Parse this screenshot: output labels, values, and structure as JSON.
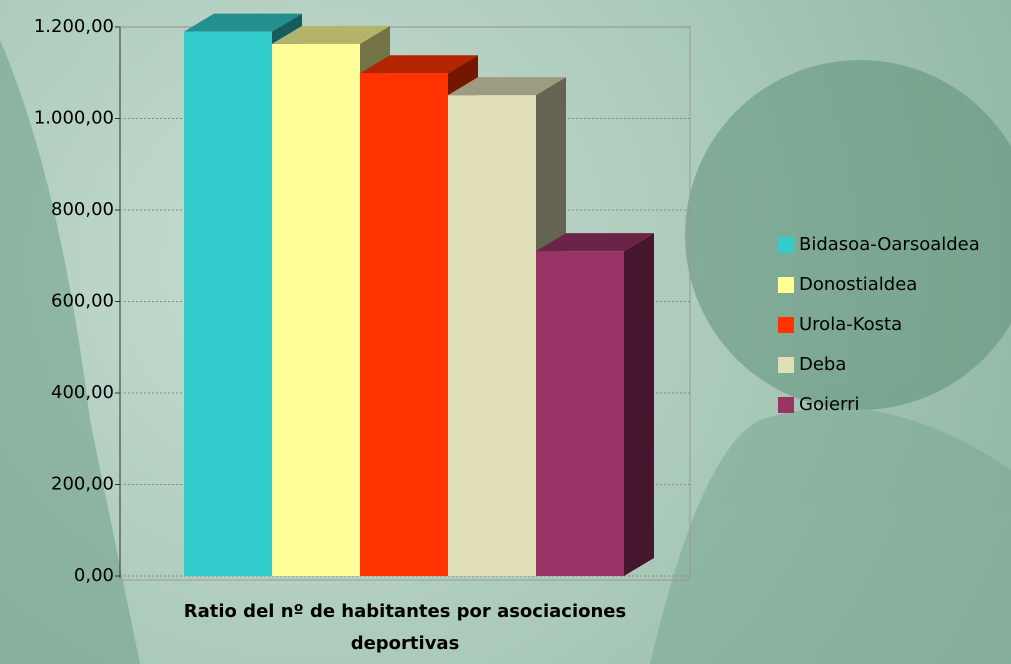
{
  "chart_data": {
    "type": "bar3d",
    "categories": [
      "Ratio del nº de habitantes por asociaciones deportivas"
    ],
    "series": [
      {
        "name": "Bidasoa-Oarsoaldea",
        "color": "#33cccc",
        "values": [
          1190
        ]
      },
      {
        "name": "Donostialdea",
        "color": "#ffff99",
        "values": [
          1163
        ]
      },
      {
        "name": "Urola-Kosta",
        "color": "#ff3300",
        "values": [
          1099
        ]
      },
      {
        "name": "Deba",
        "color": "#e0dfb8",
        "values": [
          1051
        ]
      },
      {
        "name": "Goierri",
        "color": "#993366",
        "values": [
          710
        ]
      }
    ],
    "ylim": [
      0,
      1200
    ],
    "yticks": [
      {
        "value": 0,
        "label": "0,00"
      },
      {
        "value": 200,
        "label": "200,00"
      },
      {
        "value": 400,
        "label": "400,00"
      },
      {
        "value": 600,
        "label": "600,00"
      },
      {
        "value": 800,
        "label": "800,00"
      },
      {
        "value": 1000,
        "label": "1.000,00"
      },
      {
        "value": 1200,
        "label": "1.200,00"
      }
    ],
    "grid": true,
    "legend": "right"
  }
}
